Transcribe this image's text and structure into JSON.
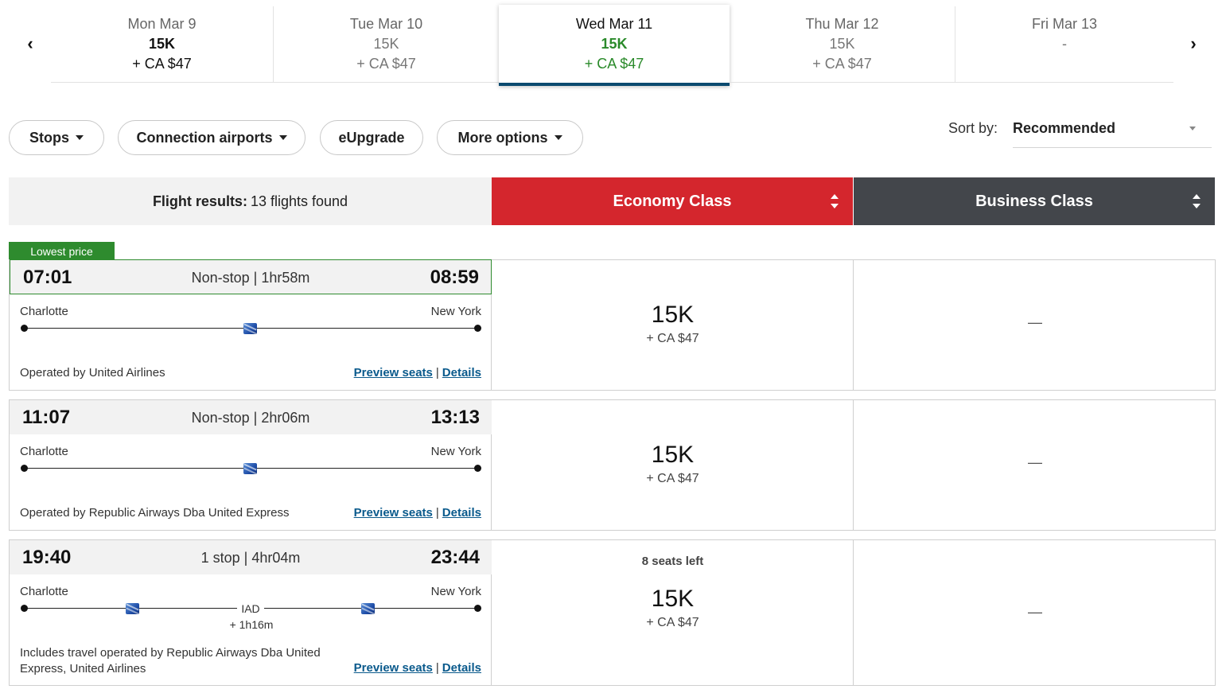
{
  "dates": [
    {
      "label": "Mon Mar 9",
      "price": "15K",
      "tax": "+ CA $47"
    },
    {
      "label": "Tue Mar 10",
      "price": "15K",
      "tax": "+ CA $47"
    },
    {
      "label": "Wed Mar 11",
      "price": "15K",
      "tax": "+ CA $47"
    },
    {
      "label": "Thu Mar 12",
      "price": "15K",
      "tax": "+ CA $47"
    },
    {
      "label": "Fri Mar 13",
      "price": "-",
      "tax": ""
    }
  ],
  "filters": {
    "stops": "Stops",
    "connection_airports": "Connection airports",
    "eupgrade": "eUpgrade",
    "more_options": "More options"
  },
  "sort": {
    "label": "Sort by:",
    "value": "Recommended"
  },
  "results": {
    "label": "Flight results:",
    "count": "13 flights found"
  },
  "classes": {
    "economy": "Economy Class",
    "business": "Business Class"
  },
  "colors": {
    "economy": "#d4262d",
    "business": "#43464b",
    "lowest": "#2e8b2e",
    "active_date": "#0b4a6f"
  },
  "lowest_badge": "Lowest price",
  "links": {
    "preview": "Preview seats",
    "details": "Details",
    "separator": "|"
  },
  "flights": [
    {
      "depart": "07:01",
      "arrive": "08:59",
      "duration": "Non-stop | 1hr58m",
      "from": "Charlotte",
      "to": "New York",
      "operated": "Operated by United Airlines",
      "economy": {
        "price": "15K",
        "tax": "+ CA $47",
        "seats": ""
      },
      "business": "—"
    },
    {
      "depart": "11:07",
      "arrive": "13:13",
      "duration": "Non-stop | 2hr06m",
      "from": "Charlotte",
      "to": "New York",
      "operated": "Operated by Republic Airways Dba United Express",
      "economy": {
        "price": "15K",
        "tax": "+ CA $47",
        "seats": ""
      },
      "business": "—"
    },
    {
      "depart": "19:40",
      "arrive": "23:44",
      "duration": "1 stop | 4hr04m",
      "from": "Charlotte",
      "to": "New York",
      "stop_airport": "IAD",
      "layover": "+ 1h16m",
      "operated_line1": "Includes travel operated by Republic Airways Dba United",
      "operated_line2": "Express, United Airlines",
      "economy": {
        "price": "15K",
        "tax": "+ CA $47",
        "seats": "8 seats left"
      },
      "business": "—"
    }
  ]
}
